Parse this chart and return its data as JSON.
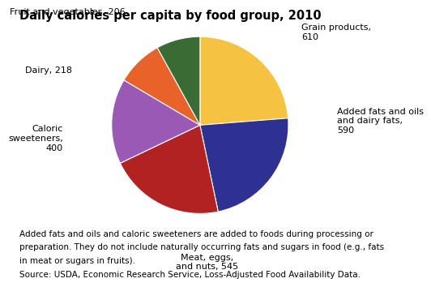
{
  "title": "Daily calories per capita by food group, 2010",
  "slices": [
    {
      "label": "Grain products,\n610",
      "value": 610,
      "color": "#F5C242"
    },
    {
      "label": "Added fats and oils\nand dairy fats,\n590",
      "value": 590,
      "color": "#2E3192"
    },
    {
      "label": "Meat, eggs,\nand nuts, 545",
      "value": 545,
      "color": "#B22222"
    },
    {
      "label": "Caloric\nsweeteners,\n400",
      "value": 400,
      "color": "#9B59B6"
    },
    {
      "label": "Dairy, 218",
      "value": 218,
      "color": "#E8622A"
    },
    {
      "label": "Fruit and vegetables, 206",
      "value": 206,
      "color": "#3A6B35"
    }
  ],
  "footnote_lines": [
    "Added fats and oils and caloric sweeteners are added to foods during processing or",
    "preparation. They do not include naturally occurring fats and sugars in food (e.g., fats",
    "in meat or sugars in fruits).",
    "Source: USDA, Economic Research Service, Loss-Adjusted Food Availability Data."
  ],
  "title_fontsize": 10.5,
  "label_fontsize": 8.0,
  "footnote_fontsize": 7.5
}
